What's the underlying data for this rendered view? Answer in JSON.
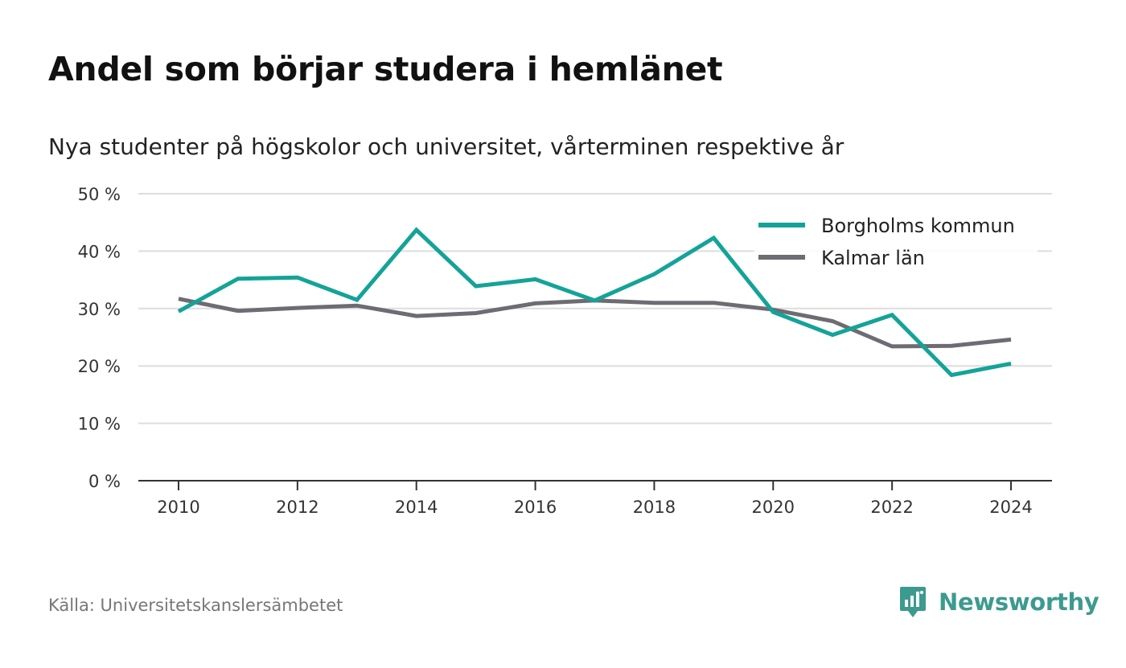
{
  "title": "Andel som börjar studera i hemlänet",
  "subtitle": "Nya studenter på högskolor och universitet, vårterminen respektive år",
  "source": "Källa: Universitetskanslersämbetet",
  "brand": {
    "name": "Newsworthy",
    "icon": "newsworthy-logo-icon",
    "color": "#3d9a8e"
  },
  "chart_data": {
    "type": "line",
    "x": [
      2010,
      2011,
      2012,
      2013,
      2014,
      2015,
      2016,
      2017,
      2018,
      2019,
      2020,
      2021,
      2022,
      2023,
      2024
    ],
    "series": [
      {
        "name": "Borgholms kommun",
        "color": "#14a398",
        "values": [
          29.5,
          35.2,
          35.4,
          31.5,
          43.7,
          33.9,
          35.1,
          31.4,
          36.0,
          42.3,
          29.4,
          25.4,
          28.9,
          18.4,
          20.4
        ]
      },
      {
        "name": "Kalmar län",
        "color": "#6e6c72",
        "values": [
          31.7,
          29.6,
          30.1,
          30.5,
          28.7,
          29.2,
          30.9,
          31.4,
          31.0,
          31.0,
          29.8,
          27.8,
          23.4,
          23.5,
          24.6
        ]
      }
    ],
    "yticks": [
      0,
      10,
      20,
      30,
      40,
      50
    ],
    "ytick_labels": [
      "0 %",
      "10 %",
      "20 %",
      "30 %",
      "40 %",
      "50 %"
    ],
    "xticks": [
      2010,
      2012,
      2014,
      2016,
      2018,
      2020,
      2022,
      2024
    ],
    "xtick_labels": [
      "2010",
      "2012",
      "2014",
      "2016",
      "2018",
      "2020",
      "2022",
      "2024"
    ],
    "ylim": [
      0,
      50
    ],
    "xlim": [
      2010,
      2024
    ],
    "grid": true,
    "legend_position": "top-right",
    "xlabel": "",
    "ylabel": ""
  }
}
